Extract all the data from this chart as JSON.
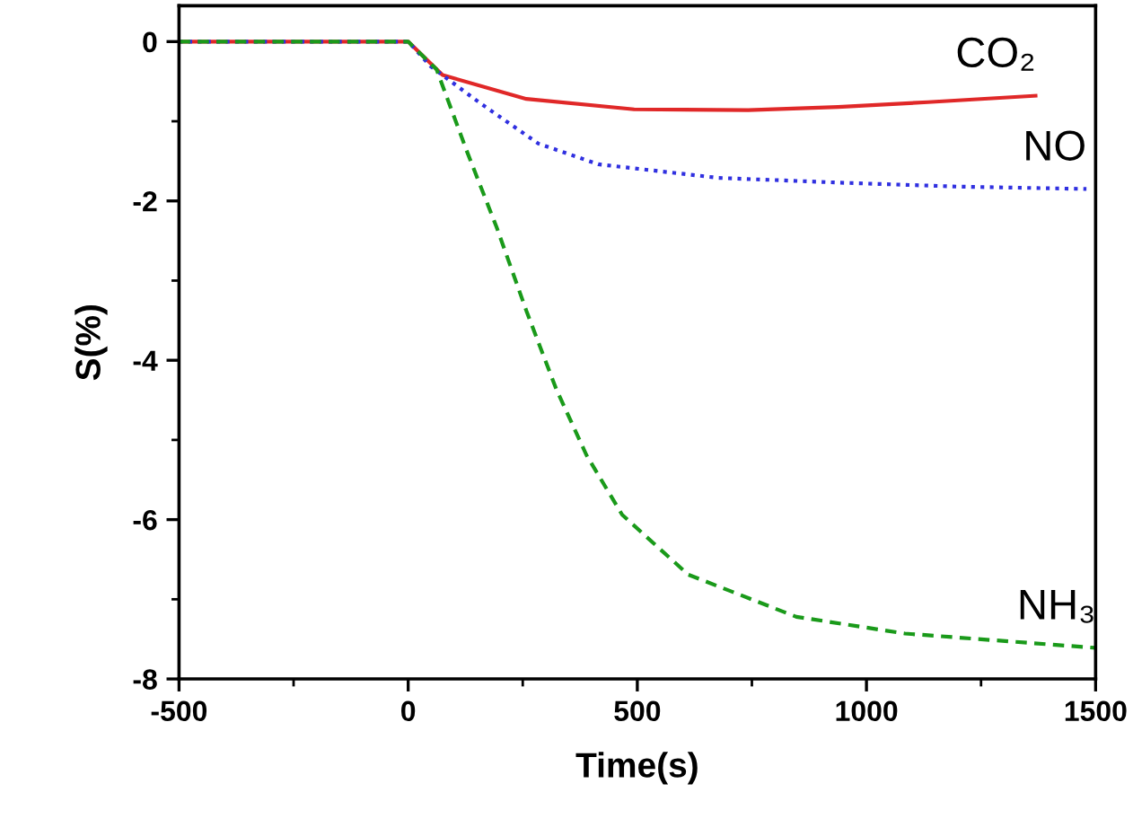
{
  "chart_data": {
    "type": "line",
    "xlabel": "Time(s)",
    "ylabel": "S(%)",
    "xlim": [
      -500,
      1500
    ],
    "xticks": [
      -500,
      0,
      500,
      1000,
      1500
    ],
    "ylim": [
      -8,
      0.45
    ],
    "yticks": [
      -8,
      -6,
      -4,
      -2,
      0
    ],
    "grid": false,
    "legend": false,
    "series": [
      {
        "name": "CO₂",
        "color": "#e02828",
        "line_style": "solid",
        "x": [
          -500,
          0,
          75,
          258,
          493,
          742,
          938,
          1134,
          1369
        ],
        "values": [
          0,
          0,
          -0.42,
          -0.72,
          -0.85,
          -0.86,
          -0.82,
          -0.76,
          -0.68
        ]
      },
      {
        "name": "NO",
        "color": "#3030e0",
        "line_style": "dotted",
        "x": [
          -500,
          0,
          49,
          154,
          284,
          415,
          676,
          938,
          1199,
          1480
        ],
        "values": [
          0,
          0,
          -0.31,
          -0.76,
          -1.28,
          -1.54,
          -1.71,
          -1.77,
          -1.82,
          -1.85
        ]
      },
      {
        "name": "NH₃",
        "color": "#1a9a1a",
        "line_style": "dashed",
        "x": [
          -500,
          0,
          62,
          127,
          193,
          258,
          323,
          389,
          467,
          611,
          847,
          1084,
          1500
        ],
        "values": [
          0,
          0,
          -0.35,
          -1.36,
          -2.33,
          -3.38,
          -4.36,
          -5.19,
          -5.94,
          -6.69,
          -7.22,
          -7.43,
          -7.61
        ]
      }
    ]
  }
}
